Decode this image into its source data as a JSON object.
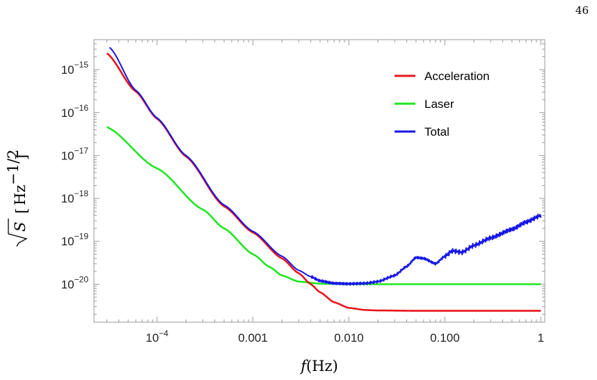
{
  "page_number": "46",
  "chart_data": {
    "type": "line",
    "xlabel": "f(Hz)",
    "ylabel": "√S [Hz^−1/2]",
    "x_scale": "log",
    "y_scale": "log",
    "xlim": [
      2.2e-05,
      1.1
    ],
    "ylim": [
      1.3e-21,
      5e-15
    ],
    "x_ticks": [
      {
        "value": 0.0001,
        "label": "10",
        "exp": "−4"
      },
      {
        "value": 0.001,
        "label": "0.001",
        "exp": ""
      },
      {
        "value": 0.01,
        "label": "0.010",
        "exp": ""
      },
      {
        "value": 0.1,
        "label": "0.100",
        "exp": ""
      },
      {
        "value": 1,
        "label": "1",
        "exp": ""
      }
    ],
    "y_ticks": [
      {
        "value": 1e-20,
        "label": "10",
        "exp": "−20"
      },
      {
        "value": 1e-19,
        "label": "10",
        "exp": "−19"
      },
      {
        "value": 1e-18,
        "label": "10",
        "exp": "−18"
      },
      {
        "value": 1e-17,
        "label": "10",
        "exp": "−17"
      },
      {
        "value": 1e-16,
        "label": "10",
        "exp": "−16"
      },
      {
        "value": 1e-15,
        "label": "10",
        "exp": "−15"
      }
    ],
    "legend_position": "top-right",
    "grid": false,
    "series": [
      {
        "name": "Acceleration",
        "color": "#e8141a",
        "x": [
          3e-05,
          6e-05,
          0.0001,
          0.0002,
          0.0005,
          0.001,
          0.002,
          0.003,
          0.004,
          0.005,
          0.007,
          0.01,
          0.015,
          0.02,
          0.05,
          0.1,
          0.3,
          1
        ],
        "y": [
          2.4e-15,
          3.1e-16,
          7.2e-17,
          9.5e-18,
          6.5e-19,
          1.6e-19,
          4e-20,
          1.8e-20,
          1e-20,
          6.5e-21,
          3.8e-21,
          2.8e-21,
          2.5e-21,
          2.45e-21,
          2.4e-21,
          2.4e-21,
          2.4e-21,
          2.4e-21
        ]
      },
      {
        "name": "Laser",
        "color": "#1ee61e",
        "x": [
          3e-05,
          0.0001,
          0.0003,
          0.0005,
          0.001,
          0.0015,
          0.002,
          0.003,
          0.005,
          0.01,
          0.1,
          1
        ],
        "y": [
          4.6e-17,
          5e-18,
          5.5e-19,
          2e-19,
          5e-20,
          2.5e-20,
          1.6e-20,
          1.15e-20,
          1.03e-20,
          1e-20,
          1e-20,
          1e-20
        ]
      },
      {
        "name": "Total",
        "color": "#1414e6",
        "x": [
          3.2e-05,
          6e-05,
          0.0001,
          0.0002,
          0.0005,
          0.001,
          0.002,
          0.003,
          0.004,
          0.005,
          0.007,
          0.01,
          0.015,
          0.02,
          0.03,
          0.04,
          0.05,
          0.06,
          0.08,
          0.1,
          0.12,
          0.15,
          0.2,
          0.3,
          0.5,
          0.7,
          1
        ],
        "y": [
          3.3e-15,
          3.3e-16,
          7.5e-17,
          1e-17,
          7e-19,
          1.7e-19,
          4.5e-20,
          2.1e-20,
          1.5e-20,
          1.2e-20,
          1.05e-20,
          1.02e-20,
          1.05e-20,
          1.15e-20,
          1.6e-20,
          2.6e-20,
          4.2e-20,
          4e-20,
          3e-20,
          4.5e-20,
          6e-20,
          5.5e-20,
          8e-20,
          1.2e-19,
          1.9e-19,
          2.8e-19,
          4e-19
        ]
      }
    ]
  }
}
